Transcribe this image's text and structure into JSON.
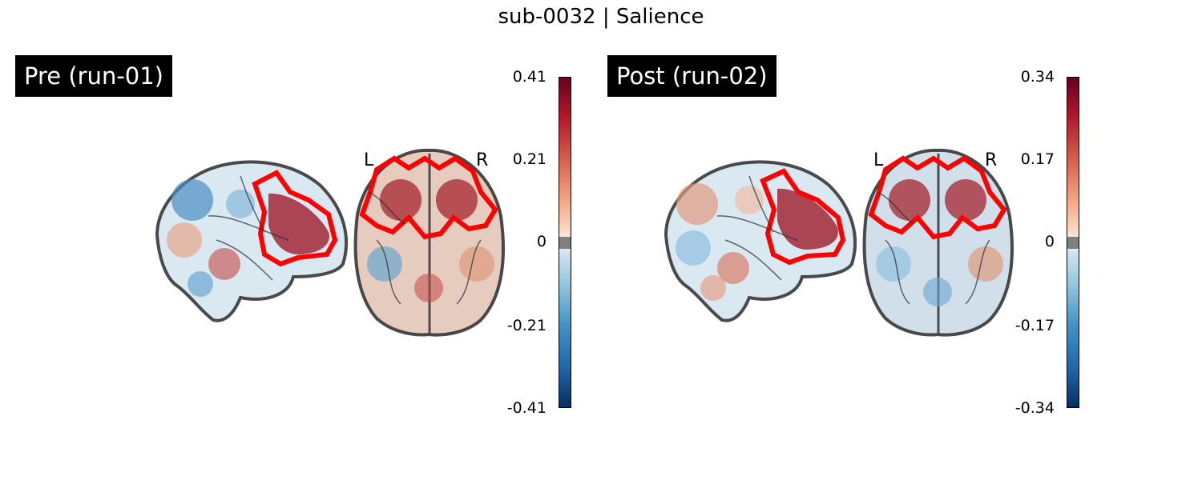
{
  "figure": {
    "title": "sub-0032 | Salience"
  },
  "panels": [
    {
      "label": "Pre (run-01)",
      "orientation_left": "L",
      "orientation_right": "R",
      "colorbar": {
        "ticks": [
          "0.41",
          "0.21",
          "0",
          "-0.21",
          "-0.41"
        ],
        "vmax": 0.41,
        "vmin": -0.41
      }
    },
    {
      "label": "Post (run-02)",
      "orientation_left": "L",
      "orientation_right": "R",
      "colorbar": {
        "ticks": [
          "0.34",
          "0.17",
          "0",
          "-0.17",
          "-0.34"
        ],
        "vmax": 0.34,
        "vmin": -0.34
      }
    }
  ],
  "colors": {
    "roi_outline": "#ff0000",
    "positive_max": "#67001f",
    "negative_max": "#053061",
    "threshold_band": "#808080"
  }
}
